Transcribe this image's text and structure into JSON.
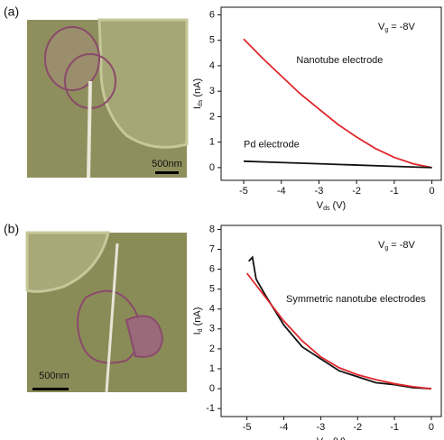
{
  "panels": [
    {
      "label": "(a)",
      "scale_bar": "500nm"
    },
    {
      "label": "(b)",
      "scale_bar": "500nm"
    }
  ],
  "chart_data": [
    {
      "type": "line",
      "xlabel": [
        "V",
        "ds",
        "(V)"
      ],
      "ylabel": [
        "I",
        "ds",
        "(nA)"
      ],
      "annotation": [
        "V",
        "g",
        "= -8V"
      ],
      "xlim": [
        -5.6,
        0.25
      ],
      "ylim": [
        -0.5,
        6.3
      ],
      "xticks": [
        -5,
        -4,
        -3,
        -2,
        -1,
        0
      ],
      "yticks": [
        0,
        1,
        2,
        3,
        4,
        5,
        6
      ],
      "series": [
        {
          "name": "Nanotube electrode",
          "color": "#e0262c",
          "x": [
            -5,
            -4.5,
            -4,
            -3.5,
            -3,
            -2.5,
            -2,
            -1.5,
            -1,
            -0.5,
            0
          ],
          "values": [
            5.05,
            4.3,
            3.6,
            2.9,
            2.3,
            1.7,
            1.2,
            0.75,
            0.4,
            0.15,
            0
          ]
        },
        {
          "name": "Pd electrode",
          "color": "#111111",
          "x": [
            -5,
            -4,
            -3,
            -2,
            -1,
            0
          ],
          "values": [
            0.25,
            0.2,
            0.15,
            0.1,
            0.05,
            0
          ]
        }
      ]
    },
    {
      "type": "line",
      "xlabel": [
        "V",
        "ds",
        "(V)"
      ],
      "ylabel": [
        "I",
        "d",
        "(nA)"
      ],
      "annotation": [
        "V",
        "g",
        "= -8V"
      ],
      "note": "Symmetric nanotube electrodes",
      "xlim": [
        -5.7,
        0.27
      ],
      "ylim": [
        -1.4,
        8.2
      ],
      "xticks": [
        -5,
        -4,
        -3,
        -2,
        -1,
        0
      ],
      "yticks": [
        -1,
        0,
        1,
        2,
        3,
        4,
        5,
        6,
        7,
        8
      ],
      "series": [
        {
          "color": "#111111",
          "x": [
            -4.95,
            -4.85,
            -4.75,
            -4.5,
            -4,
            -3.5,
            -3,
            -2.5,
            -2,
            -1.5,
            -1,
            -0.5,
            0
          ],
          "values": [
            6.4,
            6.6,
            5.5,
            4.7,
            3.2,
            2.1,
            1.5,
            0.9,
            0.6,
            0.3,
            0.2,
            0.05,
            0
          ]
        },
        {
          "color": "#e0262c",
          "x": [
            -5,
            -4.5,
            -4,
            -3.5,
            -3,
            -2.5,
            -2,
            -1.5,
            -1,
            -0.5,
            0
          ],
          "values": [
            5.8,
            4.6,
            3.4,
            2.4,
            1.6,
            1.05,
            0.7,
            0.45,
            0.25,
            0.1,
            0
          ]
        }
      ]
    }
  ]
}
